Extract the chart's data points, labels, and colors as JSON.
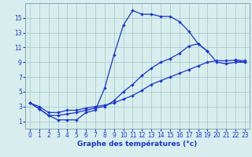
{
  "xlabel": "Graphe des températures (°c)",
  "bg_color": "#d8eeee",
  "grid_color": "#aacccc",
  "line_color": "#1a35cc",
  "xlim": [
    -0.5,
    23.5
  ],
  "ylim": [
    0,
    17
  ],
  "xticks": [
    0,
    1,
    2,
    3,
    4,
    5,
    6,
    7,
    8,
    9,
    10,
    11,
    12,
    13,
    14,
    15,
    16,
    17,
    18,
    19,
    20,
    21,
    22,
    23
  ],
  "yticks": [
    1,
    3,
    5,
    7,
    9,
    11,
    13,
    15
  ],
  "series1_x": [
    0,
    1,
    2,
    3,
    4,
    5,
    6,
    7,
    8,
    9,
    10,
    11,
    12,
    13,
    14,
    15,
    16,
    17,
    18,
    19,
    20,
    21,
    22,
    23
  ],
  "series1_y": [
    3.5,
    2.7,
    1.8,
    1.2,
    1.2,
    1.2,
    2.2,
    2.5,
    5.5,
    10.0,
    14.0,
    16.0,
    15.5,
    15.5,
    15.2,
    15.2,
    14.5,
    13.2,
    11.5,
    10.5,
    null,
    null,
    9.2,
    9.0
  ],
  "series2_x": [
    0,
    1,
    2,
    3,
    4,
    5,
    6,
    7,
    8,
    9,
    10,
    11,
    12,
    13,
    14,
    15,
    16,
    17,
    18,
    19,
    20,
    21,
    22,
    23
  ],
  "series2_y": [
    3.5,
    3.0,
    2.2,
    2.2,
    2.5,
    2.5,
    2.8,
    3.0,
    3.2,
    3.5,
    4.0,
    4.5,
    5.2,
    6.0,
    6.5,
    7.0,
    7.5,
    8.0,
    8.5,
    9.0,
    9.2,
    9.2,
    9.3,
    9.2
  ],
  "series3_x": [
    0,
    1,
    2,
    3,
    4,
    5,
    6,
    7,
    8,
    9,
    10,
    11,
    12,
    13,
    14,
    15,
    16,
    17,
    18,
    19,
    20,
    21,
    22,
    23
  ],
  "series3_y": [
    3.5,
    2.7,
    1.8,
    1.8,
    2.0,
    2.2,
    2.5,
    2.8,
    3.0,
    3.8,
    5.0,
    6.0,
    7.2,
    8.2,
    9.0,
    9.5,
    10.2,
    11.2,
    11.5,
    10.5,
    9.0,
    8.8,
    9.0,
    9.0
  ],
  "xlabel_fontsize": 6.5,
  "tick_fontsize": 5.5
}
